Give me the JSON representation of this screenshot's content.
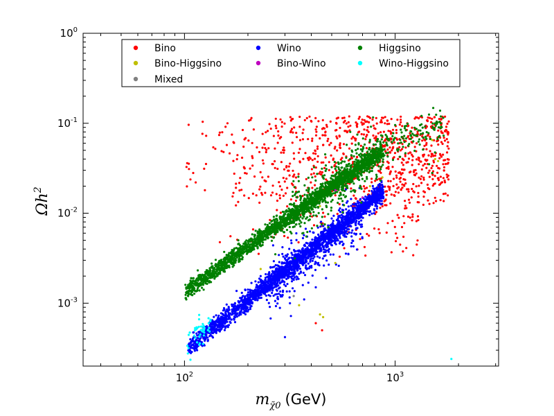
{
  "chart_data": {
    "type": "scatter",
    "title": "",
    "xlabel": {
      "symbol": "m",
      "subscript": "χ̃0",
      "unit": "(GeV)"
    },
    "ylabel": {
      "symbol": "Ωh",
      "superscript": "2"
    },
    "xscale": "log",
    "yscale": "log",
    "xlim": [
      33,
      3100
    ],
    "ylim": [
      0.0002,
      1.0
    ],
    "x_ticks": [
      {
        "value": 100,
        "base": "10",
        "exp": "2"
      },
      {
        "value": 1000,
        "base": "10",
        "exp": "3"
      }
    ],
    "y_ticks": [
      {
        "value": 0.001,
        "base": "10",
        "exp": "-3"
      },
      {
        "value": 0.01,
        "base": "10",
        "exp": "-2"
      },
      {
        "value": 0.1,
        "base": "10",
        "exp": "-1"
      },
      {
        "value": 1,
        "base": "10",
        "exp": "0"
      }
    ],
    "legend_position": "top",
    "series": [
      {
        "name": "Bino",
        "color": "#ff0000",
        "regions": [
          {
            "shape": "box",
            "count": 750,
            "x": [
              160,
              1800
            ],
            "y": [
              0.012,
              0.12
            ],
            "dens_pow": 1.7
          },
          {
            "shape": "box",
            "count": 180,
            "x": [
              140,
              1300
            ],
            "y": [
              0.003,
              0.03
            ],
            "dens_pow": 1.6
          },
          {
            "shape": "box",
            "count": 35,
            "x": [
              100,
              300
            ],
            "y": [
              0.01,
              0.11
            ],
            "dens_pow": 1.0
          }
        ],
        "points": [
          {
            "x": 103,
            "y": 0.036
          },
          {
            "x": 105,
            "y": 0.031
          },
          {
            "x": 110,
            "y": 0.028
          },
          {
            "x": 113,
            "y": 0.022
          },
          {
            "x": 122,
            "y": 0.104
          },
          {
            "x": 125,
            "y": 0.018
          },
          {
            "x": 140,
            "y": 0.052
          },
          {
            "x": 150,
            "y": 0.049
          },
          {
            "x": 160,
            "y": 0.1
          },
          {
            "x": 450,
            "y": 0.0005
          },
          {
            "x": 420,
            "y": 0.0006
          }
        ]
      },
      {
        "name": "Wino",
        "color": "#0000ff",
        "regions": [
          {
            "shape": "band",
            "count": 2200,
            "x": [
              103,
              880
            ],
            "y_at_x0": 0.00031,
            "y_at_x1": 0.0175,
            "spread": 0.11,
            "dens_pow": 1.25
          },
          {
            "shape": "band",
            "count": 420,
            "x": [
              250,
              700
            ],
            "y_at_x0": 0.00155,
            "y_at_x1": 0.0095,
            "spread": 0.3,
            "dens_pow": 1.0
          }
        ],
        "points": [
          {
            "x": 300,
            "y": 0.00042
          },
          {
            "x": 320,
            "y": 0.00072
          },
          {
            "x": 370,
            "y": 0.0011
          },
          {
            "x": 420,
            "y": 0.0015
          },
          {
            "x": 470,
            "y": 0.0019
          },
          {
            "x": 540,
            "y": 0.0026
          },
          {
            "x": 600,
            "y": 0.0035
          },
          {
            "x": 250,
            "y": 0.0015
          },
          {
            "x": 230,
            "y": 0.002
          },
          {
            "x": 220,
            "y": 0.0016
          }
        ]
      },
      {
        "name": "Higgsino",
        "color": "#008000",
        "regions": [
          {
            "shape": "band",
            "count": 2100,
            "x": [
              101,
              870
            ],
            "y_at_x0": 0.00135,
            "y_at_x1": 0.05,
            "spread": 0.09,
            "dens_pow": 1.15
          },
          {
            "shape": "band",
            "count": 420,
            "x": [
              310,
              880
            ],
            "y_at_x0": 0.009,
            "y_at_x1": 0.05,
            "spread": 0.3,
            "dens_pow": 1.0
          },
          {
            "shape": "band",
            "count": 120,
            "x": [
              850,
              1700
            ],
            "y_at_x0": 0.05,
            "y_at_x1": 0.1,
            "spread": 0.2,
            "dens_pow": 1.0
          }
        ],
        "points": [
          {
            "x": 102,
            "y": 0.0011
          },
          {
            "x": 104,
            "y": 0.0012
          },
          {
            "x": 101,
            "y": 0.0016
          },
          {
            "x": 180,
            "y": 0.005
          },
          {
            "x": 270,
            "y": 0.0035
          },
          {
            "x": 1450,
            "y": 0.035
          },
          {
            "x": 1550,
            "y": 0.1
          },
          {
            "x": 1500,
            "y": 0.028
          }
        ]
      },
      {
        "name": "Bino-Higgsino",
        "color": "#bfbf00",
        "regions": [],
        "points": [
          {
            "x": 350,
            "y": 0.00095
          },
          {
            "x": 440,
            "y": 0.00075
          },
          {
            "x": 455,
            "y": 0.0007
          },
          {
            "x": 520,
            "y": 0.0028
          },
          {
            "x": 440,
            "y": 0.012
          },
          {
            "x": 760,
            "y": 0.02
          },
          {
            "x": 870,
            "y": 0.025
          },
          {
            "x": 1600,
            "y": 0.038
          },
          {
            "x": 1550,
            "y": 0.04
          },
          {
            "x": 230,
            "y": 0.0024
          },
          {
            "x": 1500,
            "y": 0.065
          }
        ]
      },
      {
        "name": "Bino-Wino",
        "color": "#bf00bf",
        "regions": [],
        "points": [
          {
            "x": 700,
            "y": 0.015
          },
          {
            "x": 520,
            "y": 0.018
          }
        ]
      },
      {
        "name": "Wino-Higgsino",
        "color": "#00ffff",
        "regions": [
          {
            "shape": "band",
            "count": 40,
            "x": [
              103,
              135
            ],
            "y_at_x0": 0.00034,
            "y_at_x1": 0.00062,
            "spread": 0.18,
            "dens_pow": 1.0
          }
        ],
        "points": [
          {
            "x": 1850,
            "y": 0.00024
          },
          {
            "x": 112,
            "y": 0.0005
          },
          {
            "x": 120,
            "y": 0.00055
          },
          {
            "x": 130,
            "y": 0.00068
          }
        ]
      },
      {
        "name": "Mixed",
        "color": "#808080",
        "regions": [],
        "points": [
          {
            "x": 330,
            "y": 0.0012
          }
        ]
      }
    ],
    "legend_order": [
      "Bino",
      "Wino",
      "Higgsino",
      "Bino-Higgsino",
      "Bino-Wino",
      "Wino-Higgsino",
      "Mixed"
    ]
  }
}
